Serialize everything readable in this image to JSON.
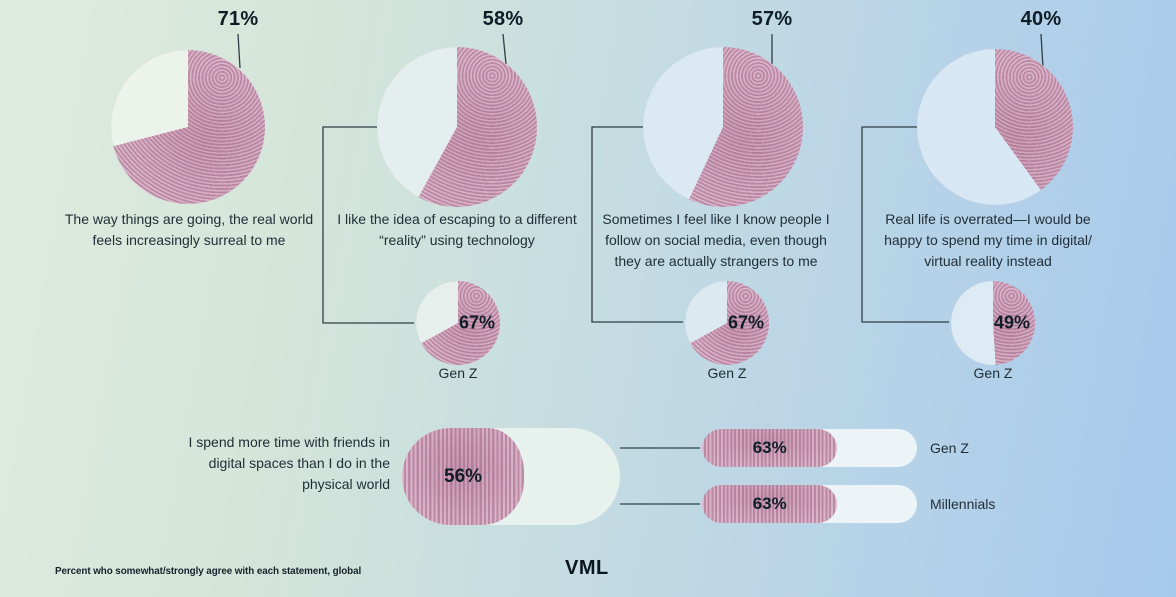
{
  "chart_data": {
    "type": "pie",
    "title": "",
    "note": "Percent who somewhat/strongly agree with each statement, global",
    "legend_position": "none",
    "statements": [
      {
        "statement": "The way things are going, the real world feels increasingly surreal to me",
        "global": 71,
        "global_label": "71%",
        "light_color": "#ecf3ea"
      },
      {
        "statement": "I like the idea of escaping to a different “reality” using technology",
        "global": 58,
        "global_label": "58%",
        "light_color": "#e4eeee",
        "genz": 67,
        "genz_label": "67%",
        "genz_name": "Gen Z",
        "genz_light": "#e7efec"
      },
      {
        "statement": "Sometimes I feel like I know people I follow on social media, even though they are actually strangers to me",
        "global": 57,
        "global_label": "57%",
        "light_color": "#dbeaf2",
        "genz": 67,
        "genz_label": "67%",
        "genz_name": "Gen Z",
        "genz_light": "#dde9f1"
      },
      {
        "statement": "Real life is overrated—I would be happy to spend my time in digital/​virtual reality instead",
        "global": 40,
        "global_label": "40%",
        "light_color": "#d8e7f4",
        "genz": 49,
        "genz_label": "49%",
        "genz_name": "Gen Z",
        "genz_light": "#dcebf4"
      }
    ],
    "bottom": {
      "type": "bar",
      "statement": "I spend more time with friends in digital spaces than I do in the physical world",
      "global": 56,
      "global_label": "56%",
      "bars": [
        {
          "name": "Gen Z",
          "value": 63,
          "label": "63%"
        },
        {
          "name": "Millennials",
          "value": 63,
          "label": "63%"
        }
      ]
    }
  },
  "footer": {
    "note": "Percent who somewhat/strongly agree with each statement, global",
    "logo": "VML"
  },
  "colors": {
    "background_left": "#e0ebdf",
    "background_right": "#a7c9ec",
    "pink_stripe_light": "#dab6ca",
    "pink_stripe_dark": "#bd8aa6",
    "line": "#2f3e46",
    "text": "#1f2d35",
    "pill_track": "#e7f1ee",
    "bar_track": "#ecf4f7"
  }
}
